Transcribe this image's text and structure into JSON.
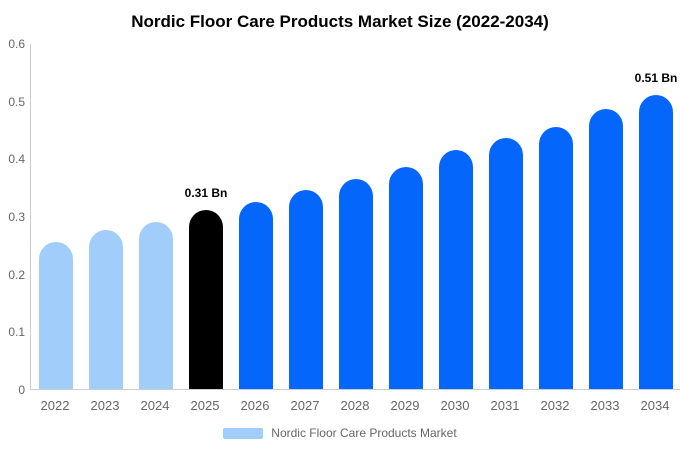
{
  "chart_data": {
    "type": "bar",
    "title": "Nordic Floor Care Products Market Size (2022-2034)",
    "categories": [
      "2022",
      "2023",
      "2024",
      "2025",
      "2026",
      "2027",
      "2028",
      "2029",
      "2030",
      "2031",
      "2032",
      "2033",
      "2034"
    ],
    "values": [
      0.255,
      0.275,
      0.29,
      0.31,
      0.325,
      0.345,
      0.365,
      0.385,
      0.415,
      0.435,
      0.455,
      0.485,
      0.51
    ],
    "unit": "Bn",
    "xlabel": "",
    "ylabel": "",
    "ylim": [
      0,
      0.6
    ],
    "yticks": [
      0,
      0.1,
      0.2,
      0.3,
      0.4,
      0.5,
      0.6
    ],
    "ytick_labels": [
      "0",
      "0.1",
      "0.2",
      "0.3",
      "0.4",
      "0.5",
      "0.6"
    ],
    "grid": false,
    "bar_color_keys": [
      "historical",
      "historical",
      "historical",
      "highlight",
      "forecast",
      "forecast",
      "forecast",
      "forecast",
      "forecast",
      "forecast",
      "forecast",
      "forecast",
      "forecast"
    ],
    "annotations": [
      {
        "category": "2025",
        "text": "0.31 Bn"
      },
      {
        "category": "2034",
        "text": "0.51 Bn"
      }
    ],
    "legend": {
      "position": "bottom",
      "entries": [
        {
          "label": "Nordic Floor Care Products Market",
          "color_key": "historical"
        }
      ]
    }
  },
  "colors": {
    "historical": "#A1CDFB",
    "highlight": "#000000",
    "forecast": "#0566FB",
    "axis_line": "#CCCCCC",
    "axis_text": "#666666",
    "title_text": "#000000",
    "annotation_text": "#000000",
    "legend_text": "#666666"
  }
}
